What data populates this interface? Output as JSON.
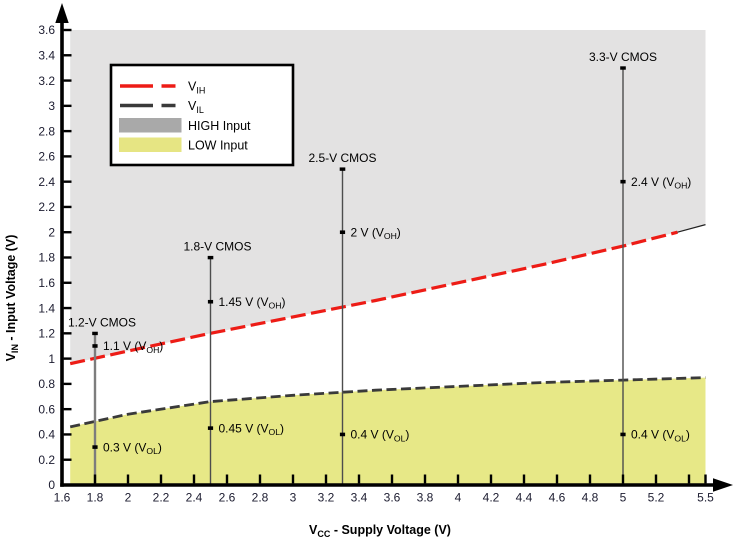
{
  "chart_data": {
    "type": "line",
    "title": "",
    "xlabel": {
      "main": "V",
      "sub": "CC",
      "rest": " - Supply Voltage (V)"
    },
    "ylabel": {
      "main": "V",
      "sub": "IN",
      "rest": " - Input Voltage (V)"
    },
    "xlim": [
      1.6,
      5.5
    ],
    "ylim": [
      0,
      3.6
    ],
    "grid": false,
    "x_ticks": [
      {
        "v": 1.6,
        "label": "1.6"
      },
      {
        "v": 1.8,
        "label": "1.8"
      },
      {
        "v": 2,
        "label": "2"
      },
      {
        "v": 2.2,
        "label": "2.2"
      },
      {
        "v": 2.4,
        "label": "2.4"
      },
      {
        "v": 2.6,
        "label": "2.6"
      },
      {
        "v": 2.8,
        "label": "2.8"
      },
      {
        "v": 3,
        "label": "3"
      },
      {
        "v": 3.2,
        "label": "3.2"
      },
      {
        "v": 3.4,
        "label": "3.4"
      },
      {
        "v": 3.6,
        "label": "3.6"
      },
      {
        "v": 3.8,
        "label": "3.8"
      },
      {
        "v": 4,
        "label": "4"
      },
      {
        "v": 4.2,
        "label": "4.2"
      },
      {
        "v": 4.4,
        "label": "4.4"
      },
      {
        "v": 4.6,
        "label": "4.6"
      },
      {
        "v": 4.8,
        "label": "4.8"
      },
      {
        "v": 5,
        "label": "5"
      },
      {
        "v": 5.2,
        "label": "5.2"
      },
      {
        "v": 5.4,
        "label": ""
      },
      {
        "v": 5.5,
        "label": "5.5"
      }
    ],
    "y_ticks": [
      {
        "v": 0,
        "label": "0"
      },
      {
        "v": 0.2,
        "label": "0.2"
      },
      {
        "v": 0.4,
        "label": "0.4"
      },
      {
        "v": 0.6,
        "label": "0.6"
      },
      {
        "v": 0.8,
        "label": "0.8"
      },
      {
        "v": 1,
        "label": "1"
      },
      {
        "v": 1.2,
        "label": "1.2"
      },
      {
        "v": 1.4,
        "label": "1.4"
      },
      {
        "v": 1.6,
        "label": "1.6"
      },
      {
        "v": 1.8,
        "label": "1.8"
      },
      {
        "v": 2,
        "label": "2"
      },
      {
        "v": 2.2,
        "label": "2.2"
      },
      {
        "v": 2.4,
        "label": "2.4"
      },
      {
        "v": 2.6,
        "label": "2.6"
      },
      {
        "v": 2.8,
        "label": "2.8"
      },
      {
        "v": 3,
        "label": "3"
      },
      {
        "v": 3.2,
        "label": "3.2"
      },
      {
        "v": 3.4,
        "label": "3.4"
      },
      {
        "v": 3.6,
        "label": "3.6"
      }
    ],
    "series": [
      {
        "name": "VIH",
        "label_main": "V",
        "label_sub": "IH",
        "type": "dashed-line",
        "color": "#ed1c16",
        "x": [
          1.65,
          2,
          2.5,
          3,
          3.5,
          4,
          4.5,
          5,
          5.5
        ],
        "y": [
          0.96,
          1.06,
          1.2,
          1.33,
          1.46,
          1.6,
          1.74,
          1.89,
          2.06
        ]
      },
      {
        "name": "VIL",
        "label_main": "V",
        "label_sub": "IL",
        "type": "dashed-line",
        "color": "#3a3a3a",
        "x": [
          1.65,
          2,
          2.5,
          3,
          3.5,
          4,
          4.5,
          5,
          5.5
        ],
        "y": [
          0.46,
          0.56,
          0.66,
          0.71,
          0.75,
          0.78,
          0.81,
          0.83,
          0.85
        ]
      },
      {
        "name": "HIGH Input",
        "type": "region",
        "color": "#e3e2e2",
        "legend_color": "#a9a9a9",
        "desc": "area above VIH curve up to 3.6 V, VCC 1.65 to 5.5"
      },
      {
        "name": "LOW Input",
        "type": "region",
        "color": "#e7e887",
        "legend_color": "#e6e583",
        "desc": "area below VIL curve down to 0 V, VCC 1.65 to 5.5"
      }
    ],
    "annotations": [
      {
        "name": "1.2-V CMOS",
        "x": 1.8,
        "top": 1.2,
        "line_color": "#7d7d7d",
        "points": [
          {
            "y": 1.1,
            "text": "1.1 V",
            "ref_sub": "OH"
          },
          {
            "y": 0.3,
            "text": "0.3 V",
            "ref_sub": "OL"
          }
        ]
      },
      {
        "name": "1.8-V CMOS",
        "x": 2.5,
        "top": 1.8,
        "line_color": "#4d4d4d",
        "points": [
          {
            "y": 1.45,
            "text": "1.45 V",
            "ref_sub": "OH"
          },
          {
            "y": 0.45,
            "text": "0.45 V",
            "ref_sub": "OL"
          }
        ]
      },
      {
        "name": "2.5-V CMOS",
        "x": 3.3,
        "top": 2.5,
        "line_color": "#4d4d4d",
        "points": [
          {
            "y": 2,
            "text": "2 V",
            "ref_sub": "OH"
          },
          {
            "y": 0.4,
            "text": "0.4 V",
            "ref_sub": "OL"
          }
        ]
      },
      {
        "name": "3.3-V CMOS",
        "x": 5,
        "top": 3.3,
        "line_color": "#4d4d4d",
        "points": [
          {
            "y": 2.4,
            "text": "2.4 V",
            "ref_sub": "OH"
          },
          {
            "y": 0.4,
            "text": "0.4 V",
            "ref_sub": "OL"
          }
        ]
      }
    ],
    "legend": {
      "position": "top-left",
      "items": [
        {
          "swatch": "dashed-line",
          "color": "#ed1c16",
          "label_main": "V",
          "label_sub": "IH"
        },
        {
          "swatch": "dashed-line",
          "color": "#3a3a3a",
          "label_main": "V",
          "label_sub": "IL"
        },
        {
          "swatch": "rect",
          "color": "#a9a9a9",
          "label": "HIGH Input"
        },
        {
          "swatch": "rect",
          "color": "#e6e583",
          "label": "LOW Input"
        }
      ]
    },
    "region_x_range": [
      1.65,
      5.5
    ],
    "colors": {
      "axis": "#000000",
      "tick_label": "#1c1c30",
      "annotation_text": "#000000"
    }
  }
}
